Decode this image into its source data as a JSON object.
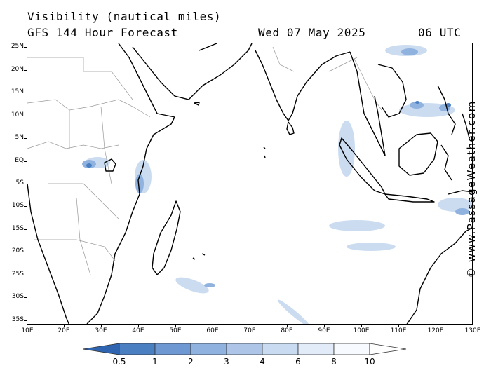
{
  "header": {
    "title": "Visibility (nautical miles)",
    "subtitle": "GFS 144 Hour Forecast",
    "date": "Wed 07 May 2025",
    "time": "06 UTC"
  },
  "credit": "© www.PassageWeather.com",
  "map": {
    "projection": "equirectangular",
    "lon_range": [
      10,
      130
    ],
    "lat_range": [
      -36,
      26
    ],
    "lat_labels": [
      "25N",
      "20N",
      "15N",
      "10N",
      "5N",
      "EQ",
      "5S",
      "10S",
      "15S",
      "20S",
      "25S",
      "30S",
      "35S"
    ],
    "lat_values": [
      25,
      20,
      15,
      10,
      5,
      0,
      -5,
      -10,
      -15,
      -20,
      -25,
      -30,
      -35
    ],
    "lon_labels": [
      "10E",
      "20E",
      "30E",
      "40E",
      "50E",
      "60E",
      "70E",
      "80E",
      "90E",
      "100E",
      "110E",
      "120E",
      "130E"
    ],
    "lon_values": [
      10,
      20,
      30,
      40,
      50,
      60,
      70,
      80,
      90,
      100,
      110,
      120,
      130
    ],
    "colors": {
      "coastline": "#000000",
      "borders": "#999999",
      "low_vis": "#4a7fc2",
      "med_vis": "#8fb2de",
      "light_vis": "#c9dbf1"
    }
  },
  "legend": {
    "labels": [
      "0.5",
      "1",
      "2",
      "3",
      "4",
      "6",
      "8",
      "10"
    ],
    "colors": [
      "#2f64b0",
      "#4a7fc2",
      "#6d98d1",
      "#8fb2de",
      "#adc6e8",
      "#c9dbf1",
      "#e2ecf8",
      "#f7fafe"
    ]
  }
}
